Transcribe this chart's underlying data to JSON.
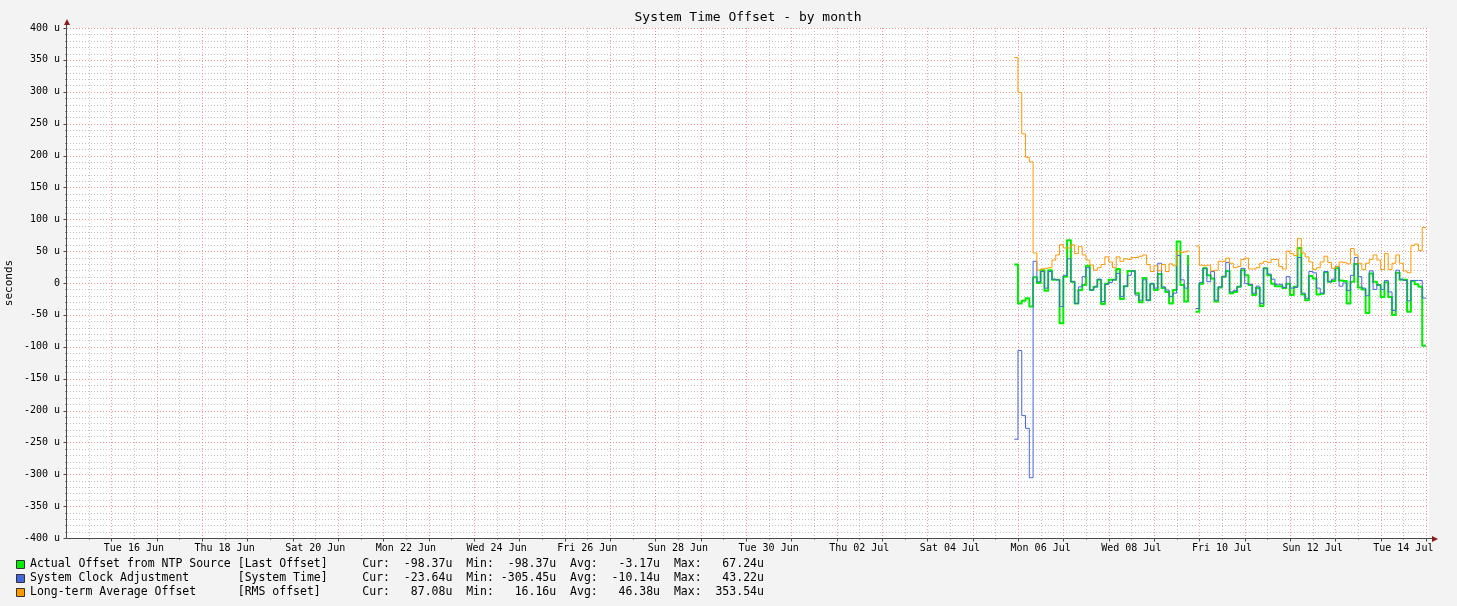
{
  "chart_data": {
    "type": "step",
    "title": "System Time Offset - by month",
    "ylabel": "seconds",
    "x": [
      "--07-05T22:00",
      "--07-06T00:00",
      "--07-06T02:00",
      "--07-06T04:00",
      "--07-06T06:00",
      "--07-06T08:00",
      "--07-06T10:00",
      "--07-06T12:00",
      "--07-06T14:00",
      "--07-06T16:00",
      "--07-06T18:00",
      "--07-06T20:00",
      "--07-06T22:00",
      "--07-07T00:00",
      "--07-07T02:00",
      "--07-07T04:00",
      "--07-07T06:00",
      "--07-07T08:00",
      "--07-07T10:00",
      "--07-07T12:00",
      "--07-07T14:00",
      "--07-07T16:00",
      "--07-07T18:00",
      "--07-07T20:00",
      "--07-07T22:00",
      "--07-08T00:00",
      "--07-08T02:00",
      "--07-08T04:00",
      "--07-08T06:00",
      "--07-08T08:00",
      "--07-08T10:00",
      "--07-08T12:00",
      "--07-08T14:00",
      "--07-08T16:00",
      "--07-08T18:00",
      "--07-08T20:00",
      "--07-08T22:00",
      "--07-09T00:00",
      "--07-09T02:00",
      "--07-09T04:00",
      "--07-09T06:00",
      "--07-09T08:00",
      "--07-09T10:00",
      "--07-09T12:00",
      "--07-09T14:00",
      "--07-09T16:00",
      "--07-09T18:00",
      "--07-09T20:00",
      "--07-09T22:00",
      "--07-10T00:00",
      "--07-10T02:00",
      "--07-10T04:00",
      "--07-10T06:00",
      "--07-10T08:00",
      "--07-10T10:00",
      "--07-10T12:00",
      "--07-10T14:00",
      "--07-10T16:00",
      "--07-10T18:00",
      "--07-10T20:00",
      "--07-10T22:00",
      "--07-11T00:00",
      "--07-11T02:00",
      "--07-11T04:00",
      "--07-11T06:00",
      "--07-11T08:00",
      "--07-11T10:00",
      "--07-11T12:00",
      "--07-11T14:00",
      "--07-11T16:00",
      "--07-11T18:00",
      "--07-11T20:00",
      "--07-11T22:00",
      "--07-12T00:00",
      "--07-12T02:00",
      "--07-12T04:00",
      "--07-12T06:00",
      "--07-12T08:00",
      "--07-12T10:00",
      "--07-12T12:00",
      "--07-12T14:00",
      "--07-12T16:00",
      "--07-12T18:00",
      "--07-12T20:00",
      "--07-12T22:00",
      "--07-13T00:00",
      "--07-13T02:00",
      "--07-13T04:00",
      "--07-13T06:00",
      "--07-13T08:00",
      "--07-13T10:00",
      "--07-13T12:00",
      "--07-13T14:00",
      "--07-13T16:00",
      "--07-13T18:00",
      "--07-13T20:00",
      "--07-13T22:00",
      "--07-14T00:00",
      "--07-14T02:00",
      "--07-14T04:00",
      "--07-14T06:00",
      "--07-14T08:00",
      "--07-14T10:00",
      "--07-14T12:00",
      "--07-14T14:00",
      "--07-14T16:00",
      "--07-14T18:00",
      "--07-14T20:00",
      "--07-14T22:00",
      "--07-15T00:00"
    ],
    "series": [
      {
        "name": "Actual Offset from NTP Source [Last Offset]",
        "color": "#00ee00",
        "values": [
          29,
          -32,
          -28,
          -24,
          -37,
          9,
          0,
          20,
          -12,
          20,
          5,
          5,
          -63,
          10,
          67.24,
          2,
          -32,
          -11,
          -3,
          27,
          -11,
          -6,
          5,
          -33,
          -1,
          5,
          5,
          22,
          -25,
          -5,
          19,
          19,
          -16,
          -30,
          8,
          -27,
          -1,
          -11,
          14,
          -8,
          -14,
          -32,
          -11,
          65,
          -3,
          -29,
          44,
          null,
          -45,
          -1,
          23,
          12,
          7,
          -29,
          -7,
          10,
          19,
          -16,
          -14,
          -6,
          20,
          12,
          -3,
          -19,
          -8,
          -36,
          23,
          12,
          -1,
          -5,
          -5,
          -8,
          -1,
          -19,
          -6,
          55,
          -18,
          -27,
          11,
          7,
          -18,
          -17,
          17,
          2,
          3,
          23,
          4,
          3,
          -32,
          2,
          30,
          -7,
          -10,
          -47,
          15,
          2,
          -3,
          -22,
          1,
          -22,
          -50,
          16,
          5,
          5,
          -45,
          3,
          -2,
          -6,
          -98.37,
          -98.37
        ]
      },
      {
        "name": "System Clock Adjustment       [System Time]",
        "color": "#4466dd",
        "values": [
          -245,
          -106,
          -208,
          -228,
          -305.45,
          34,
          2,
          18,
          -8,
          18,
          6,
          5,
          -37,
          12,
          38,
          2,
          -32,
          -6,
          10,
          24,
          -11,
          -6,
          6,
          -29,
          -2,
          1,
          5,
          15,
          -21,
          -5,
          12,
          19,
          -19,
          -27,
          5,
          -27,
          -1,
          -8,
          31,
          -6,
          -11,
          -21,
          -16,
          43.22,
          5,
          -8,
          28,
          null,
          -40,
          1,
          23,
          2,
          18,
          -27,
          -6,
          10,
          32,
          -14,
          -12,
          -6,
          23,
          -1,
          -2,
          -16,
          -5,
          -32,
          23,
          14,
          6,
          -2,
          -2,
          -7,
          10,
          -8,
          -7,
          40,
          -16,
          -24,
          18,
          16,
          -8,
          -16,
          18,
          2,
          6,
          26,
          -5,
          0,
          -12,
          12,
          40,
          10,
          -8,
          -20,
          19,
          -10,
          -3,
          -10,
          4,
          -14,
          -43,
          20,
          6,
          4,
          -28,
          4,
          4,
          4,
          -23.64,
          -23.64
        ]
      },
      {
        "name": "Long-term Average Offset      [RMS offset]",
        "color": "#ff9900",
        "values": [
          353.54,
          299,
          234,
          197,
          190,
          47,
          20,
          22,
          23,
          24,
          36,
          44,
          60,
          55,
          55,
          60,
          46,
          57,
          44,
          36,
          28,
          20,
          24,
          29,
          41,
          33,
          24,
          41,
          34,
          38,
          37,
          40,
          40,
          42,
          44,
          29,
          18,
          27,
          19,
          29,
          18,
          30,
          27,
          50,
          48,
          49,
          52,
          null,
          58,
          28,
          27,
          28,
          19,
          20,
          34,
          34,
          39,
          31,
          24,
          26,
          37,
          39,
          22,
          22,
          24,
          31,
          34,
          32,
          37,
          37,
          26,
          22,
          50,
          46,
          43,
          70,
          47,
          41,
          33,
          21,
          24,
          33,
          42,
          32,
          23,
          26,
          33,
          32,
          30,
          54,
          44,
          31,
          21,
          31,
          37,
          44,
          36,
          21,
          46,
          21,
          31,
          44,
          31,
          19,
          16.16,
          59,
          61,
          51,
          87.08,
          87.08
        ]
      }
    ],
    "xlim": [
      "--06-15T00:35",
      "--07-15T01:35"
    ],
    "xticks": [
      {
        "value": "--06-15T12:00",
        "label": null
      },
      {
        "value": "--06-16T00:00",
        "label": null
      },
      {
        "value": "--06-16T12:00",
        "label": "Tue 16 Jun"
      },
      {
        "value": "--06-17T00:00",
        "label": null
      },
      {
        "value": "--06-17T12:00",
        "label": null
      },
      {
        "value": "--06-18T00:00",
        "label": null
      },
      {
        "value": "--06-18T12:00",
        "label": "Thu 18 Jun"
      },
      {
        "value": "--06-19T00:00",
        "label": null
      },
      {
        "value": "--06-19T12:00",
        "label": null
      },
      {
        "value": "--06-20T00:00",
        "label": null
      },
      {
        "value": "--06-20T12:00",
        "label": "Sat 20 Jun"
      },
      {
        "value": "--06-21T00:00",
        "label": null
      },
      {
        "value": "--06-21T12:00",
        "label": null
      },
      {
        "value": "--06-22T00:00",
        "label": null
      },
      {
        "value": "--06-22T12:00",
        "label": "Mon 22 Jun"
      },
      {
        "value": "--06-23T00:00",
        "label": null
      },
      {
        "value": "--06-23T12:00",
        "label": null
      },
      {
        "value": "--06-24T00:00",
        "label": null
      },
      {
        "value": "--06-24T12:00",
        "label": "Wed 24 Jun"
      },
      {
        "value": "--06-25T00:00",
        "label": null
      },
      {
        "value": "--06-25T12:00",
        "label": null
      },
      {
        "value": "--06-26T00:00",
        "label": null
      },
      {
        "value": "--06-26T12:00",
        "label": "Fri 26 Jun"
      },
      {
        "value": "--06-27T00:00",
        "label": null
      },
      {
        "value": "--06-27T12:00",
        "label": null
      },
      {
        "value": "--06-28T00:00",
        "label": null
      },
      {
        "value": "--06-28T12:00",
        "label": "Sun 28 Jun"
      },
      {
        "value": "--06-29T00:00",
        "label": null
      },
      {
        "value": "--06-29T12:00",
        "label": null
      },
      {
        "value": "--06-30T00:00",
        "label": null
      },
      {
        "value": "--06-30T12:00",
        "label": "Tue 30 Jun"
      },
      {
        "value": "--07-01T00:00",
        "label": null
      },
      {
        "value": "--07-01T12:00",
        "label": null
      },
      {
        "value": "--07-02T00:00",
        "label": null
      },
      {
        "value": "--07-02T12:00",
        "label": "Thu 02 Jul"
      },
      {
        "value": "--07-03T00:00",
        "label": null
      },
      {
        "value": "--07-03T12:00",
        "label": null
      },
      {
        "value": "--07-04T00:00",
        "label": null
      },
      {
        "value": "--07-04T12:00",
        "label": "Sat 04 Jul"
      },
      {
        "value": "--07-05T00:00",
        "label": null
      },
      {
        "value": "--07-05T12:00",
        "label": null
      },
      {
        "value": "--07-06T00:00",
        "label": null
      },
      {
        "value": "--07-06T12:00",
        "label": "Mon 06 Jul"
      },
      {
        "value": "--07-07T00:00",
        "label": null
      },
      {
        "value": "--07-07T12:00",
        "label": null
      },
      {
        "value": "--07-08T00:00",
        "label": null
      },
      {
        "value": "--07-08T12:00",
        "label": "Wed 08 Jul"
      },
      {
        "value": "--07-09T00:00",
        "label": null
      },
      {
        "value": "--07-09T12:00",
        "label": null
      },
      {
        "value": "--07-10T00:00",
        "label": null
      },
      {
        "value": "--07-10T12:00",
        "label": "Fri 10 Jul"
      },
      {
        "value": "--07-11T00:00",
        "label": null
      },
      {
        "value": "--07-11T12:00",
        "label": null
      },
      {
        "value": "--07-12T00:00",
        "label": null
      },
      {
        "value": "--07-12T12:00",
        "label": "Sun 12 Jul"
      },
      {
        "value": "--07-13T00:00",
        "label": null
      },
      {
        "value": "--07-13T12:00",
        "label": null
      },
      {
        "value": "--07-14T00:00",
        "label": null
      },
      {
        "value": "--07-14T12:00",
        "label": "Tue 14 Jul"
      },
      {
        "value": "--07-15T00:00",
        "label": null
      }
    ],
    "ylim": [
      -400,
      400
    ],
    "yticks": [
      {
        "value": -400,
        "label": "-400 u"
      },
      {
        "value": -390,
        "label": null
      },
      {
        "value": -380,
        "label": null
      },
      {
        "value": -370,
        "label": null
      },
      {
        "value": -360,
        "label": null
      },
      {
        "value": -350,
        "label": "-350 u"
      },
      {
        "value": -340,
        "label": null
      },
      {
        "value": -330,
        "label": null
      },
      {
        "value": -320,
        "label": null
      },
      {
        "value": -310,
        "label": null
      },
      {
        "value": -300,
        "label": "-300 u"
      },
      {
        "value": -290,
        "label": null
      },
      {
        "value": -280,
        "label": null
      },
      {
        "value": -270,
        "label": null
      },
      {
        "value": -260,
        "label": null
      },
      {
        "value": -250,
        "label": "-250 u"
      },
      {
        "value": -240,
        "label": null
      },
      {
        "value": -230,
        "label": null
      },
      {
        "value": -220,
        "label": null
      },
      {
        "value": -210,
        "label": null
      },
      {
        "value": -200,
        "label": "-200 u"
      },
      {
        "value": -190,
        "label": null
      },
      {
        "value": -180,
        "label": null
      },
      {
        "value": -170,
        "label": null
      },
      {
        "value": -160,
        "label": null
      },
      {
        "value": -150,
        "label": "-150 u"
      },
      {
        "value": -140,
        "label": null
      },
      {
        "value": -130,
        "label": null
      },
      {
        "value": -120,
        "label": null
      },
      {
        "value": -110,
        "label": null
      },
      {
        "value": -100,
        "label": "-100 u"
      },
      {
        "value": -90,
        "label": null
      },
      {
        "value": -80,
        "label": null
      },
      {
        "value": -70,
        "label": null
      },
      {
        "value": -60,
        "label": null
      },
      {
        "value": -50,
        "label": "-50 u"
      },
      {
        "value": -40,
        "label": null
      },
      {
        "value": -30,
        "label": null
      },
      {
        "value": -20,
        "label": null
      },
      {
        "value": -10,
        "label": null
      },
      0,
      {
        "value": 10,
        "label": null
      },
      {
        "value": 20,
        "label": null
      },
      {
        "value": 30,
        "label": null
      },
      {
        "value": 40,
        "label": null
      },
      {
        "value": 50,
        "label": "50 u"
      },
      {
        "value": 60,
        "label": null
      },
      {
        "value": 70,
        "label": null
      },
      {
        "value": 80,
        "label": null
      },
      {
        "value": 90,
        "label": null
      },
      {
        "value": 100,
        "label": "100 u"
      },
      {
        "value": 110,
        "label": null
      },
      {
        "value": 120,
        "label": null
      },
      {
        "value": 130,
        "label": null
      },
      {
        "value": 140,
        "label": null
      },
      {
        "value": 150,
        "label": "150 u"
      },
      {
        "value": 160,
        "label": null
      },
      {
        "value": 170,
        "label": null
      },
      {
        "value": 180,
        "label": null
      },
      {
        "value": 190,
        "label": null
      },
      {
        "value": 200,
        "label": "200 u"
      },
      {
        "value": 210,
        "label": null
      },
      {
        "value": 220,
        "label": null
      },
      {
        "value": 230,
        "label": null
      },
      {
        "value": 240,
        "label": null
      },
      {
        "value": 250,
        "label": "250 u"
      },
      {
        "value": 260,
        "label": null
      },
      {
        "value": 270,
        "label": null
      },
      {
        "value": 280,
        "label": null
      },
      {
        "value": 290,
        "label": null
      },
      {
        "value": 300,
        "label": "300 u"
      },
      {
        "value": 310,
        "label": null
      },
      {
        "value": 320,
        "label": null
      },
      {
        "value": 330,
        "label": null
      },
      {
        "value": 340,
        "label": null
      },
      {
        "value": 350,
        "label": "350 u"
      },
      {
        "value": 360,
        "label": null
      },
      {
        "value": 370,
        "label": null
      },
      {
        "value": 380,
        "label": null
      },
      {
        "value": 390,
        "label": null
      },
      {
        "value": 400,
        "label": "400 u"
      }
    ],
    "grid": true,
    "legend": "bottom",
    "annotations": [
      "Cur:  -98.37u  Min:  -98.37u  Avg:   -3.17u  Max:   67.24u",
      "Cur:  -23.64u  Min: -305.45u  Avg:  -10.14u  Max:   43.22u",
      "Cur:   87.08u  Min:   16.16u  Avg:   46.38u  Max:  353.54u"
    ]
  }
}
